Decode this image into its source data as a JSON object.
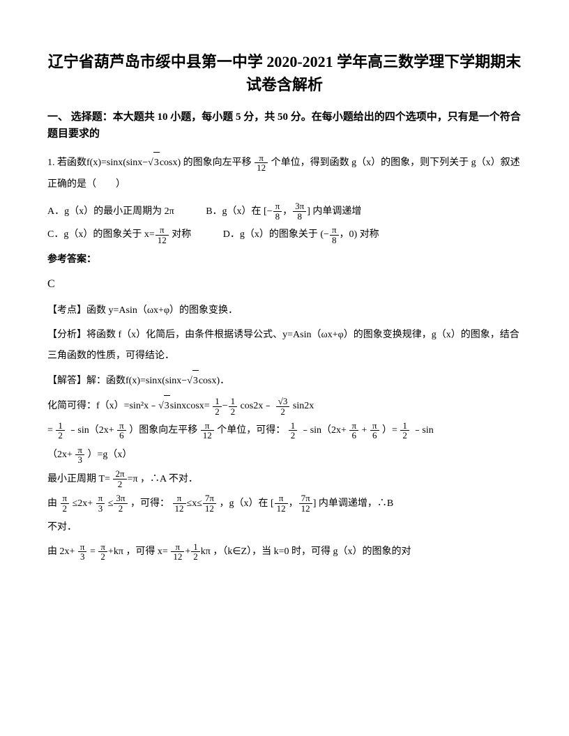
{
  "title": "辽宁省葫芦岛市绥中县第一中学 2020-2021 学年高三数学理下学期期末试卷含解析",
  "section1": "一、 选择题：本大题共 10 小题，每小题 5 分，共 50 分。在每小题给出的四个选项中，只有是一个符合题目要求的",
  "q1": {
    "prefix": "1. 若函数",
    "func": "f(x)=sinx(sinx−",
    "funcTail": "cosx)",
    "mid1": "的图象向左平移",
    "mid2": "个单位，得到函数 g（x）的图象，则下列关于 g（x）叙述正确的是（　　）",
    "optA1": "A．g（x）的最小正周期为 2π",
    "optB1": "B．g（x）在",
    "optB2": "内单调递增",
    "optC1": "C．g（x）的图象关于",
    "optC2": "对称",
    "optD1": "D．g（x）的图象关于",
    "optD2": "对称"
  },
  "answer": {
    "label": "参考答案：",
    "letter": "C",
    "kaodian": "【考点】函数 y=Asin（ωx+φ）的图象变换．",
    "fenxi": "【分析】将函数 f（x）化简后，由条件根据诱导公式、y=Asin（ωx+φ）的图象变换规律，g（x）的图象，结合三角函数的性质，可得结论．",
    "jie1": "【解答】解：函数",
    "jie1b": "f(x)=sinx(sinx−",
    "jie1c": "cosx)",
    "jie1d": "．",
    "line2a": "化简可得：f（x）=sin²x﹣",
    "line2b": "sinxcosx=",
    "line2c": "cos2x﹣",
    "line2d": " sin2x",
    "line3a": "=",
    "line3b": "﹣sin（2x+",
    "line3c": "）图象向左平移",
    "line3d": "个单位，可得：",
    "line3e": "﹣sin（2x+",
    "line3f": "+",
    "line3g": "）=",
    "line3h": "﹣sin",
    "line4a": "（2x+",
    "line4b": "）=g（x）",
    "line5a": "最小正周期 T=",
    "line5b": "，∴A 不对．",
    "line6a": "由",
    "line6b": "≤2x+",
    "line6c": "，可得：",
    "line6d": "，g（x）在",
    "line6e": " 内单调递增，∴B",
    "line6f": "不对．",
    "line7a": "由 2x+",
    "line7b": "=",
    "line7c": "，可得 x=",
    "line7d": "，（k∈Z），当 k=0 时，可得 g（x）的图象的对"
  },
  "math": {
    "pi": "π",
    "sqrt3": "3",
    "f_pi_12": {
      "num": "π",
      "den": "12"
    },
    "f_pi_8": {
      "num": "π",
      "den": "8"
    },
    "f_3pi_8": {
      "num": "3π",
      "den": "8"
    },
    "f_neg_pi_8": {
      "num": "π",
      "den": "8"
    },
    "f_1_2": {
      "num": "1",
      "den": "2"
    },
    "f_sqrt3_2": {
      "num": "√3",
      "den": "2"
    },
    "f_pi_6": {
      "num": "π",
      "den": "6"
    },
    "f_pi_3": {
      "num": "π",
      "den": "3"
    },
    "f_2pi_2": {
      "num": "2π",
      "den": "2"
    },
    "f_pi_2": {
      "num": "π",
      "den": "2"
    },
    "f_3pi_2": {
      "num": "3π",
      "den": "2"
    },
    "f_7pi_12": {
      "num": "7π",
      "den": "12"
    },
    "f_pi_12b": {
      "num": "π",
      "den": "12"
    },
    "eq_pi": "=π",
    "x_eq": "x=",
    "bracket_open": "[−",
    "comma": "，",
    "bracket_close": "]",
    "paren_open": "(−",
    "paren_close": "，0)",
    "half_minus_half": {
      "l": {
        "num": "1",
        "den": "2"
      },
      "r": {
        "num": "1",
        "den": "2"
      }
    },
    "le": "≤",
    "lt_chain": "≤x≤",
    "plus_k": "+kπ",
    "half_k": {
      "num": "1",
      "den": "2"
    },
    "kpi": "kπ"
  }
}
